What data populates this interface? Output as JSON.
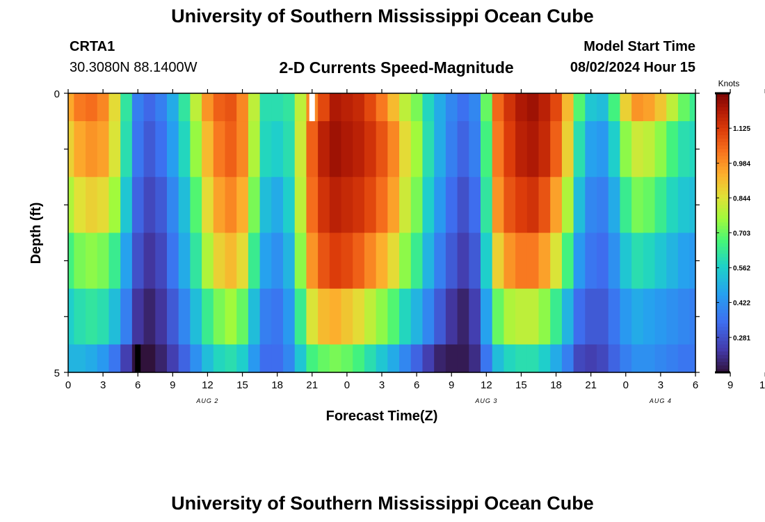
{
  "page": {
    "top_title": "University of Southern Mississippi Ocean Cube",
    "bottom_title": "University of Southern Mississippi Ocean Cube",
    "station_name": "CRTA1",
    "station_coords": "30.3080N  88.1400W",
    "chart_title": "2-D Currents Speed-Magnitude",
    "model_start_label": "Model Start Time",
    "model_start_value": "08/02/2024 Hour 15"
  },
  "chart_data": {
    "type": "heatmap",
    "title": "2-D Currents Speed-Magnitude",
    "xlabel": "Forecast Time(Z)",
    "ylabel": "Depth (ft)",
    "x_tick_labels": [
      "0",
      "3",
      "6",
      "9",
      "12",
      "15",
      "18",
      "21",
      "0",
      "3",
      "6",
      "9",
      "12",
      "15",
      "18",
      "21",
      "0",
      "3",
      "6",
      "9",
      "12",
      "15",
      "18",
      "21",
      "0",
      "3",
      "6"
    ],
    "date_labels": [
      {
        "text": "AUG 2",
        "hour": 12
      },
      {
        "text": "AUG 3",
        "hour": 36
      },
      {
        "text": "AUG 4",
        "hour": 51
      }
    ],
    "x_range_hours": [
      0,
      54
    ],
    "y_range_ft": [
      0,
      5
    ],
    "y_tick_labels": [
      "0",
      "5"
    ],
    "colorbar": {
      "label": "Knots",
      "min": 0.14,
      "max": 1.266,
      "ticks": [
        "1.125",
        "0.984",
        "0.844",
        "0.703",
        "0.562",
        "0.422",
        "0.281"
      ],
      "tick_values": [
        1.125,
        0.984,
        0.844,
        0.703,
        0.562,
        0.422,
        0.281
      ]
    },
    "depth_rows_ft": [
      0.25,
      1.25,
      2.25,
      3.25,
      4.25,
      4.75
    ],
    "row_bounds_ft": [
      [
        0,
        0.5
      ],
      [
        0.5,
        1.5
      ],
      [
        1.5,
        2.5
      ],
      [
        2.5,
        3.5
      ],
      [
        3.5,
        4.5
      ],
      [
        4.5,
        5
      ]
    ],
    "column_hours": [
      0,
      1,
      2,
      3,
      4,
      5,
      6,
      7,
      8,
      9,
      10,
      11,
      12,
      13,
      14,
      15,
      16,
      17,
      18,
      19,
      20,
      21,
      22,
      23,
      24,
      25,
      26,
      27,
      28,
      29,
      30,
      31,
      32,
      33,
      34,
      35,
      36,
      37,
      38,
      39,
      40,
      41,
      42,
      43,
      44,
      45,
      46,
      47,
      48,
      49,
      50,
      51,
      52,
      53,
      54
    ],
    "speed_knots": [
      [
        0.95,
        1.02,
        1.04,
        1.0,
        0.86,
        0.62,
        0.38,
        0.33,
        0.38,
        0.48,
        0.62,
        0.8,
        0.98,
        1.06,
        1.08,
        1.0,
        0.8,
        0.6,
        0.6,
        0.62,
        0.8,
        1.0,
        1.1,
        1.2,
        1.18,
        1.16,
        1.1,
        1.02,
        0.92,
        0.8,
        0.72,
        0.58,
        0.48,
        0.4,
        0.35,
        0.4,
        0.7,
        1.05,
        1.14,
        1.2,
        1.22,
        1.18,
        1.1,
        0.92,
        0.68,
        0.54,
        0.52,
        0.66,
        0.88,
        0.98,
        0.96,
        0.9,
        0.8,
        0.7,
        0.64
      ],
      [
        0.88,
        0.95,
        0.98,
        0.96,
        0.84,
        0.6,
        0.36,
        0.3,
        0.35,
        0.45,
        0.58,
        0.75,
        0.92,
        1.02,
        1.06,
        1.0,
        0.78,
        0.58,
        0.56,
        0.6,
        0.82,
        1.06,
        1.18,
        1.22,
        1.2,
        1.18,
        1.14,
        1.08,
        1.0,
        0.86,
        0.76,
        0.6,
        0.48,
        0.38,
        0.32,
        0.38,
        0.66,
        1.02,
        1.12,
        1.18,
        1.2,
        1.16,
        1.06,
        0.88,
        0.6,
        0.46,
        0.44,
        0.56,
        0.74,
        0.82,
        0.8,
        0.74,
        0.66,
        0.6,
        0.58
      ],
      [
        0.78,
        0.85,
        0.88,
        0.86,
        0.76,
        0.54,
        0.32,
        0.26,
        0.3,
        0.4,
        0.52,
        0.68,
        0.86,
        0.96,
        1.0,
        0.94,
        0.72,
        0.52,
        0.48,
        0.56,
        0.8,
        1.04,
        1.14,
        1.18,
        1.16,
        1.14,
        1.1,
        1.04,
        0.96,
        0.82,
        0.72,
        0.56,
        0.44,
        0.34,
        0.28,
        0.34,
        0.62,
        0.98,
        1.08,
        1.12,
        1.14,
        1.08,
        0.96,
        0.78,
        0.52,
        0.4,
        0.38,
        0.48,
        0.64,
        0.72,
        0.7,
        0.64,
        0.58,
        0.54,
        0.52
      ],
      [
        0.66,
        0.72,
        0.74,
        0.72,
        0.64,
        0.46,
        0.28,
        0.22,
        0.26,
        0.36,
        0.48,
        0.62,
        0.78,
        0.88,
        0.92,
        0.86,
        0.64,
        0.46,
        0.42,
        0.5,
        0.74,
        0.98,
        1.08,
        1.12,
        1.1,
        1.06,
        1.0,
        0.94,
        0.86,
        0.74,
        0.64,
        0.5,
        0.38,
        0.3,
        0.24,
        0.3,
        0.56,
        0.88,
        0.98,
        1.02,
        1.02,
        0.96,
        0.84,
        0.66,
        0.44,
        0.36,
        0.34,
        0.42,
        0.54,
        0.6,
        0.58,
        0.54,
        0.5,
        0.46,
        0.44
      ],
      [
        0.56,
        0.6,
        0.62,
        0.6,
        0.52,
        0.38,
        0.22,
        0.18,
        0.22,
        0.3,
        0.4,
        0.52,
        0.64,
        0.72,
        0.76,
        0.7,
        0.52,
        0.38,
        0.36,
        0.44,
        0.64,
        0.84,
        0.92,
        0.94,
        0.9,
        0.86,
        0.8,
        0.74,
        0.68,
        0.58,
        0.5,
        0.4,
        0.3,
        0.22,
        0.18,
        0.24,
        0.46,
        0.7,
        0.78,
        0.8,
        0.8,
        0.74,
        0.64,
        0.5,
        0.34,
        0.3,
        0.3,
        0.36,
        0.44,
        0.48,
        0.46,
        0.44,
        0.42,
        0.4,
        0.38
      ],
      [
        0.5,
        0.5,
        0.48,
        0.44,
        0.36,
        0.24,
        0.14,
        0.14,
        0.18,
        0.24,
        0.32,
        0.42,
        0.52,
        0.58,
        0.6,
        0.56,
        0.44,
        0.34,
        0.34,
        0.4,
        0.54,
        0.66,
        0.7,
        0.72,
        0.7,
        0.66,
        0.6,
        0.54,
        0.48,
        0.4,
        0.32,
        0.24,
        0.18,
        0.16,
        0.16,
        0.2,
        0.36,
        0.52,
        0.58,
        0.6,
        0.6,
        0.56,
        0.48,
        0.38,
        0.26,
        0.24,
        0.26,
        0.32,
        0.38,
        0.42,
        0.42,
        0.4,
        0.38,
        0.36,
        0.36
      ]
    ],
    "markers": [
      {
        "hour": 21,
        "depth_ft": 0.25,
        "color": "#ffffff"
      },
      {
        "hour": 6,
        "depth_ft": 4.75,
        "color": "#000000"
      }
    ]
  }
}
